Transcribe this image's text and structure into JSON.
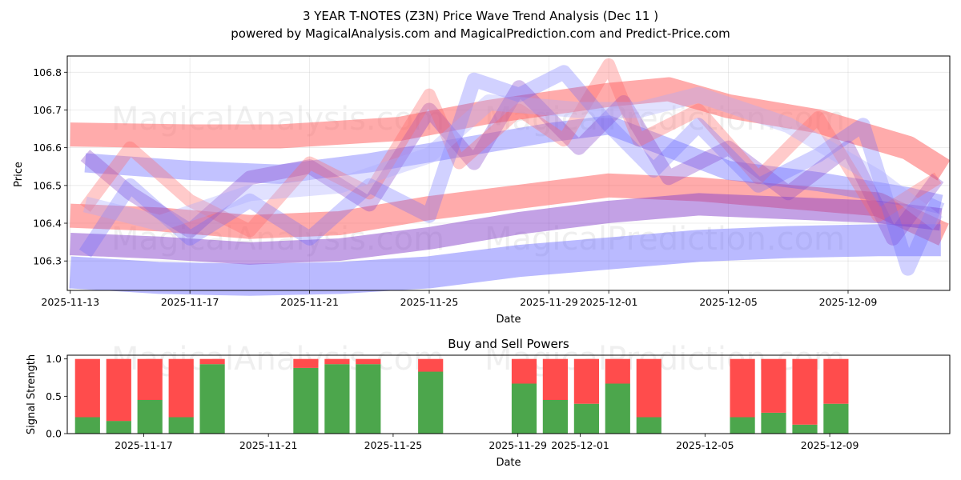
{
  "chart_data": [
    {
      "type": "line",
      "title": "3 YEAR T-NOTES (Z3N) Price Wave Trend Analysis (Dec 11 )",
      "subtitle": "powered by MagicalAnalysis.com and MagicalPrediction.com and Predict-Price.com",
      "xlabel": "Date",
      "ylabel": "Price",
      "x_start": "2025-11-13",
      "x_range_days": [
        -0.1,
        29.4
      ],
      "ylim": [
        106.222,
        106.843
      ],
      "x_ticks": [
        {
          "label": "2025-11-13",
          "day": 0
        },
        {
          "label": "2025-11-17",
          "day": 4
        },
        {
          "label": "2025-11-21",
          "day": 8
        },
        {
          "label": "2025-11-25",
          "day": 12
        },
        {
          "label": "2025-11-29",
          "day": 16
        },
        {
          "label": "2025-12-01",
          "day": 18
        },
        {
          "label": "2025-12-05",
          "day": 22
        },
        {
          "label": "2025-12-09",
          "day": 26
        }
      ],
      "y_ticks": [
        106.3,
        106.4,
        106.5,
        106.6,
        106.7,
        106.8
      ],
      "grid": true,
      "watermarks": [
        "MagicalAnalysis.com",
        "MagicalPrediction.com"
      ],
      "series": [
        {
          "name": "red-band-upper",
          "color": "#ff6666",
          "opacity": 0.55,
          "width": 30,
          "x": [
            0,
            4,
            7,
            11,
            14,
            18,
            20,
            22,
            25,
            28,
            29.2
          ],
          "y": [
            106.635,
            106.63,
            106.63,
            106.65,
            106.695,
            106.74,
            106.755,
            106.71,
            106.67,
            106.6,
            106.54
          ]
        },
        {
          "name": "red-band-lower",
          "color": "#ff6666",
          "opacity": 0.55,
          "width": 30,
          "x": [
            0,
            3,
            6,
            9,
            12,
            15,
            18,
            21,
            24,
            27,
            29.2
          ],
          "y": [
            106.42,
            106.41,
            106.39,
            106.4,
            106.44,
            106.47,
            106.5,
            106.49,
            106.47,
            106.45,
            106.37
          ]
        },
        {
          "name": "blue-band-upper",
          "color": "#6666ff",
          "opacity": 0.4,
          "width": 24,
          "x": [
            0.5,
            4,
            7,
            10,
            13,
            16,
            18,
            20,
            22,
            25,
            28,
            29.1
          ],
          "y": [
            106.56,
            106.54,
            106.53,
            106.56,
            106.6,
            106.64,
            106.66,
            106.6,
            106.54,
            106.51,
            106.47,
            106.45
          ]
        },
        {
          "name": "blue-band-lower",
          "color": "#6666ff",
          "opacity": 0.45,
          "width": 40,
          "x": [
            0,
            3,
            6,
            9,
            12,
            15,
            18,
            21,
            24,
            27,
            29.1
          ],
          "y": [
            106.27,
            106.255,
            106.25,
            106.255,
            106.27,
            106.3,
            106.32,
            106.34,
            106.35,
            106.355,
            106.355
          ]
        },
        {
          "name": "purple-band",
          "color": "#8844cc",
          "opacity": 0.5,
          "width": 28,
          "x": [
            0,
            3,
            6,
            9,
            12,
            15,
            18,
            21,
            24,
            27,
            29.1
          ],
          "y": [
            106.345,
            106.335,
            106.32,
            106.33,
            106.36,
            106.4,
            106.43,
            106.45,
            106.44,
            106.43,
            106.41
          ]
        },
        {
          "name": "purple-wave-1",
          "color": "#8844cc",
          "opacity": 0.35,
          "width": 18,
          "x": [
            0.5,
            2,
            4,
            6,
            8,
            10,
            12,
            13.5,
            15,
            17,
            18.5,
            20,
            22,
            24,
            26,
            27.5,
            29
          ],
          "y": [
            106.58,
            106.48,
            106.38,
            106.52,
            106.55,
            106.45,
            106.7,
            106.56,
            106.76,
            106.6,
            106.72,
            106.52,
            106.6,
            106.48,
            106.6,
            106.36,
            106.52
          ]
        },
        {
          "name": "red-wave-1",
          "color": "#ff6666",
          "opacity": 0.35,
          "width": 16,
          "x": [
            0.5,
            2,
            4,
            6,
            8,
            10,
            12,
            13,
            15,
            16.5,
            18,
            19,
            21,
            23,
            25,
            27,
            29
          ],
          "y": [
            106.44,
            106.6,
            106.46,
            106.38,
            106.56,
            106.48,
            106.74,
            106.56,
            106.7,
            106.62,
            106.82,
            106.62,
            106.7,
            106.52,
            106.68,
            106.42,
            106.52
          ]
        },
        {
          "name": "blue-wave-1",
          "color": "#6666ff",
          "opacity": 0.3,
          "width": 18,
          "x": [
            0.5,
            2,
            4,
            6,
            8,
            10,
            12,
            13.5,
            15,
            16.5,
            18,
            19.5,
            21,
            23,
            25,
            26.5,
            28,
            29
          ],
          "y": [
            106.32,
            106.5,
            106.36,
            106.46,
            106.36,
            106.5,
            106.42,
            106.78,
            106.74,
            106.8,
            106.66,
            106.54,
            106.66,
            106.5,
            106.58,
            106.66,
            106.28,
            106.46
          ]
        },
        {
          "name": "blue-wave-2",
          "color": "#aaaaff",
          "opacity": 0.35,
          "width": 20,
          "x": [
            0.5,
            3,
            6,
            9,
            12,
            14,
            17,
            19,
            21,
            24,
            27,
            29
          ],
          "y": [
            106.45,
            106.4,
            106.48,
            106.5,
            106.58,
            106.72,
            106.7,
            106.7,
            106.74,
            106.66,
            106.52,
            106.4
          ]
        }
      ]
    },
    {
      "type": "bar",
      "stacked": true,
      "title": "Buy and Sell Powers",
      "xlabel": "Date",
      "ylabel": "Signal Strength",
      "x_start": "2025-11-13",
      "x_range_days": [
        1.55,
        29.85
      ],
      "ylim": [
        0,
        1.05
      ],
      "y_ticks": [
        0.0,
        0.5,
        1.0
      ],
      "x_ticks": [
        {
          "label": "2025-11-17",
          "day": 4
        },
        {
          "label": "2025-11-21",
          "day": 8
        },
        {
          "label": "2025-11-25",
          "day": 12
        },
        {
          "label": "2025-11-29",
          "day": 16
        },
        {
          "label": "2025-12-01",
          "day": 18
        },
        {
          "label": "2025-12-05",
          "day": 22
        },
        {
          "label": "2025-12-09",
          "day": 26
        }
      ],
      "categories": [
        "2025-11-14",
        "2025-11-15",
        "2025-11-16",
        "2025-11-17",
        "2025-11-18",
        "2025-11-21",
        "2025-11-22",
        "2025-11-23",
        "2025-11-25",
        "2025-11-28",
        "2025-11-29",
        "2025-11-30",
        "2025-12-01",
        "2025-12-02",
        "2025-12-05",
        "2025-12-06",
        "2025-12-07",
        "2025-12-08"
      ],
      "days": [
        2.2,
        3.2,
        4.2,
        5.2,
        6.2,
        9.2,
        10.2,
        11.2,
        13.2,
        16.2,
        17.2,
        18.2,
        19.2,
        20.2,
        23.2,
        24.2,
        25.2,
        26.2
      ],
      "series": [
        {
          "name": "Buy",
          "color": "#4ca64c",
          "values": [
            0.22,
            0.17,
            0.45,
            0.22,
            0.93,
            0.88,
            0.93,
            0.93,
            0.83,
            0.67,
            0.45,
            0.4,
            0.67,
            0.22,
            0.22,
            0.28,
            0.12,
            0.4
          ]
        },
        {
          "name": "Sell",
          "color": "#ff4c4c",
          "values": [
            0.78,
            0.83,
            0.55,
            0.78,
            0.07,
            0.12,
            0.07,
            0.07,
            0.17,
            0.33,
            0.55,
            0.6,
            0.33,
            0.78,
            0.78,
            0.72,
            0.88,
            0.6
          ]
        }
      ]
    }
  ]
}
